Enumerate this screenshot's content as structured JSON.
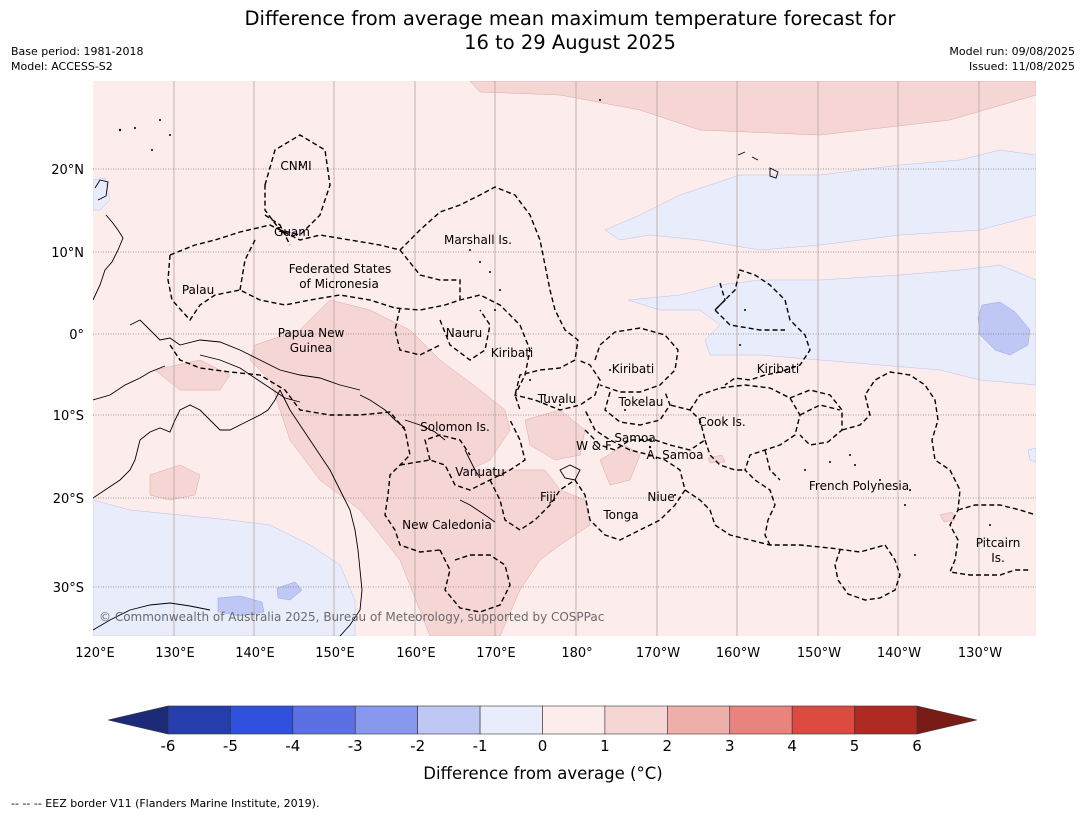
{
  "title_line1": "Difference from average mean maximum temperature forecast for",
  "title_line2": "16 to 29 August 2025",
  "base_period": "Base period: 1981-2018",
  "model": "Model: ACCESS-S2",
  "model_run": "Model run: 09/08/2025",
  "issued": "Issued: 11/08/2025",
  "lat_labels": [
    "20°N",
    "10°N",
    "0°",
    "10°S",
    "20°S",
    "30°S"
  ],
  "lon_labels": [
    "120°E",
    "130°E",
    "140°E",
    "150°E",
    "160°E",
    "170°E",
    "180°",
    "170°W",
    "160°W",
    "150°W",
    "140°W",
    "130°W"
  ],
  "places": {
    "cnmi": "CNMI",
    "guam": "Guam",
    "marshall": "Marshall Is.",
    "fsm1": "Federated States",
    "fsm2": "of Micronesia",
    "palau": "Palau",
    "png1": "Papua New",
    "png2": "Guinea",
    "nauru": "Nauru",
    "kiribati_w": "Kiribati",
    "kiribati_c": "Kiribati",
    "kiribati_e": "Kiribati",
    "tuvalu": "Tuvalu",
    "tokelau": "Tokelau",
    "cook": "Cook Is.",
    "solomon": "Solomon Is.",
    "wf": "W & F",
    "samoa": "Samoa",
    "asamoa": "A. Samoa",
    "vanuatu": "Vanuatu",
    "fiji": "Fiji",
    "niue": "Niue",
    "french_polynesia": "French Polynesia",
    "tonga": "Tonga",
    "new_caledonia": "New Caledonia",
    "pitcairn1": "Pitcairn",
    "pitcairn2": "Is."
  },
  "copyright": "© Commonwealth of Australia 2025, Bureau of Meteorology, supported by COSPPac",
  "colorbar": {
    "ticks": [
      "-6",
      "-5",
      "-4",
      "-3",
      "-2",
      "-1",
      "0",
      "1",
      "2",
      "3",
      "4",
      "5",
      "6"
    ],
    "colors": [
      "#253eac",
      "#3050de",
      "#5a70e4",
      "#8898ec",
      "#bfc7f5",
      "#e8ecfb",
      "#fcecec",
      "#f6d6d4",
      "#eeaeaa",
      "#e8837d",
      "#dc4a40",
      "#ae2a22"
    ],
    "under_color": "#1c2a78",
    "over_color": "#7a1c16",
    "label": "Difference from average ($^\\circ$C)",
    "label_text": "Difference from average (°C)"
  },
  "footer": "--  --  -- EEZ border V11 (Flanders Marine Institute, 2019)."
}
